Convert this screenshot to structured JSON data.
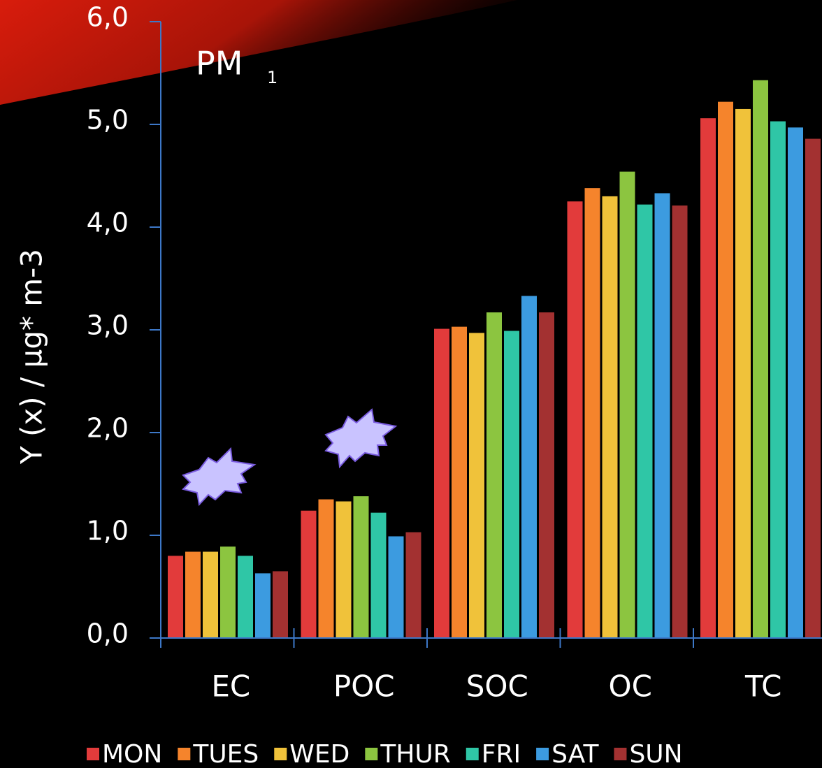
{
  "chart_data": {
    "type": "bar",
    "title": "PM",
    "title_subscript": "1",
    "y_label": "Y (x) / µg* m-3",
    "categories": [
      "EC",
      "POC",
      "SOC",
      "OC",
      "TC"
    ],
    "series": [
      {
        "name": "MON",
        "color": "#e23b3b",
        "values": [
          0.8,
          1.24,
          3.01,
          4.25,
          5.06
        ]
      },
      {
        "name": "TUES",
        "color": "#f5842c",
        "values": [
          0.84,
          1.35,
          3.03,
          4.38,
          5.22
        ]
      },
      {
        "name": "WED",
        "color": "#f0c23a",
        "values": [
          0.84,
          1.33,
          2.97,
          4.3,
          5.15
        ]
      },
      {
        "name": "THUR",
        "color": "#8cc540",
        "values": [
          0.89,
          1.38,
          3.17,
          4.54,
          5.43
        ]
      },
      {
        "name": "FRI",
        "color": "#2fc6a6",
        "values": [
          0.8,
          1.22,
          2.99,
          4.22,
          5.03
        ]
      },
      {
        "name": "SAT",
        "color": "#3c9be0",
        "values": [
          0.63,
          0.99,
          3.33,
          4.33,
          4.97
        ]
      },
      {
        "name": "SUN",
        "color": "#a33131",
        "values": [
          0.65,
          1.03,
          3.17,
          4.21,
          4.86
        ]
      }
    ],
    "ylim": [
      0,
      6
    ],
    "yticks": [
      {
        "value": 0,
        "label": "0,0"
      },
      {
        "value": 1,
        "label": "1,0"
      },
      {
        "value": 2,
        "label": "2,0"
      },
      {
        "value": 3,
        "label": "3,0"
      },
      {
        "value": 4,
        "label": "4,0"
      },
      {
        "value": 5,
        "label": "5,0"
      },
      {
        "value": 6,
        "label": "6,0"
      }
    ],
    "axis_color": "#3d78c8"
  }
}
